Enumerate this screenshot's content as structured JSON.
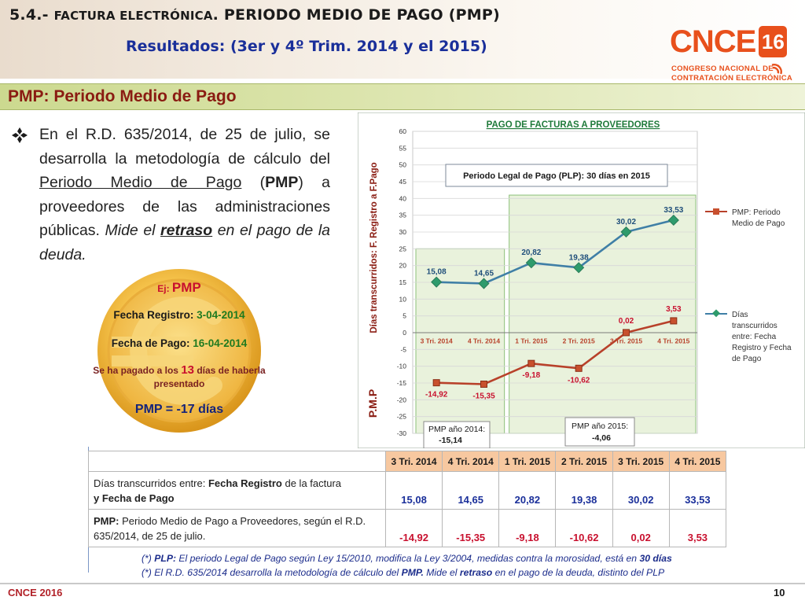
{
  "header": {
    "title_num": "5.4.- ",
    "title_sc": "FACTURA ELECTRÓNICA",
    "title_sep": ". ",
    "title_rest": "PERIODO MEDIO DE PAGO (PMP)",
    "subtitle": "Resultados: (3er y 4º Trim. 2014 y el 2015)"
  },
  "logo": {
    "text": "CNCE",
    "year": "16",
    "line1": "CONGRESO NACIONAL DE",
    "line2": "CONTRATACIÓN ELECTRÓNICA",
    "icon": "wifi-icon",
    "color": "#e8501c"
  },
  "section": {
    "title": "PMP:  Periodo Medio de Pago"
  },
  "bullet": {
    "icon": "diamond-bullet-icon",
    "t1": "En el R.D. 635/2014, de 25 de julio, se desarrolla la metodología de cálculo del ",
    "t2": "Periodo Medio de Pago",
    "t3": " (",
    "t4": "PMP",
    "t5": ") a proveedores de las administraciones públicas. ",
    "t6": "Mide el ",
    "t7": "retraso",
    "t8": " en el pago de la deuda."
  },
  "coin": {
    "icon": "euro-coin-icon",
    "ej": "Ej: ",
    "ej_big": "PMP",
    "fr_label": "Fecha Registro:  ",
    "fr_value": "3-04-2014",
    "fp_label": "Fecha de Pago:  ",
    "fp_value": "16-04-2014",
    "paid_a": "Se ha pagado a los ",
    "paid_num": "13",
    "paid_b": " días de haberla presentado",
    "result": "PMP  =  -17 días"
  },
  "chart_data": {
    "type": "line",
    "title": "PAGO DE FACTURAS A PROVEEDORES",
    "ylabel_top": "Días transcurridos: F. Registro a F.Pago",
    "ylabel_bottom": "P.M.P",
    "ylim": [
      -30,
      60
    ],
    "yticks": [
      60,
      55,
      50,
      45,
      40,
      35,
      30,
      25,
      20,
      15,
      10,
      5,
      0,
      -5,
      -10,
      -15,
      -20,
      -25,
      -30
    ],
    "categories": [
      "3 Tri. 2014",
      "4 Tri. 2014",
      "1 Tri. 2015",
      "2 Tri. 2015",
      "3 Tri. 2015",
      "4 Tri. 2015"
    ],
    "series": [
      {
        "name": "Días transcurridos entre:  Fecha Registro y Fecha de Pago",
        "color": "#3f7fa6",
        "values": [
          15.08,
          14.65,
          20.82,
          19.38,
          30.02,
          33.53
        ],
        "labels": [
          "15,08",
          "14,65",
          "20,82",
          "19,38",
          "30,02",
          "33,53"
        ]
      },
      {
        "name": "PMP: Periodo Medio de Pago",
        "color": "#b8412a",
        "values": [
          -14.92,
          -15.35,
          -9.18,
          -10.62,
          0.02,
          3.53
        ],
        "labels": [
          "-14,92",
          "-15,35",
          "-9,18",
          "-10,62",
          "0,02",
          "3,53"
        ]
      }
    ],
    "annotation": "Periodo Legal de Pago (PLP):  30 días en 2015",
    "pmp2014_label": "PMP año 2014:",
    "pmp2014_value": "-15,14",
    "pmp2015_label": "PMP año 2015:",
    "pmp2015_value": "-4,06",
    "legend": "right",
    "grid": true,
    "colors": {
      "highlight_bg": "#e9f2dc",
      "plot_bg": "#ffffff",
      "axis_label": "#8a1c12"
    }
  },
  "table": {
    "headers": [
      "3 Tri.  2014",
      "4 Tri.  2014",
      "1 Tri.  2015",
      "2 Tri.  2015",
      "3 Tri.  2015",
      "4 Tri.  2015"
    ],
    "row1_label_a": "Días transcurridos entre:  ",
    "row1_label_b": "Fecha Registro",
    "row1_label_c": " de la factura",
    "row1_label_d": "y Fecha de Pago",
    "row1_values": [
      "15,08",
      "14,65",
      "20,82",
      "19,38",
      "30,02",
      "33,53"
    ],
    "row2_label_a": "PMP:",
    "row2_label_b": " Periodo Medio de Pago a Proveedores, según el R.D. 635/2014, de 25 de julio.",
    "row2_values": [
      "-14,92",
      "-15,35",
      "-9,18",
      "-10,62",
      "0,02",
      "3,53"
    ]
  },
  "footnotes": {
    "fn1_a": "(*) ",
    "fn1_b": "PLP:",
    "fn1_c": " El periodo Legal de Pago  según Ley 15/2010, modifica la Ley 3/2004, medidas contra la morosidad, está en ",
    "fn1_d": "30 días",
    "fn2_a": "(*) El R.D. 635/2014 desarrolla la metodología de cálculo del ",
    "fn2_b": "PMP.",
    "fn2_c": "  Mide el ",
    "fn2_d": "retraso",
    "fn2_e": " en el pago de la deuda, distinto del PLP"
  },
  "footer": {
    "brand": "CNCE 2016",
    "page": "10"
  }
}
